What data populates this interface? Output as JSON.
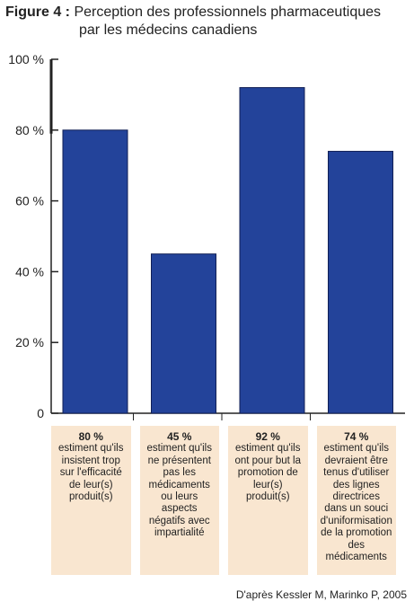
{
  "title": {
    "figure_label": "Figure 4 :",
    "line1": "Perception des professionnels pharmaceutiques",
    "line2": "par les médecins canadiens"
  },
  "chart_data": {
    "type": "bar",
    "y_ticks": [
      "0",
      "20 %",
      "40 %",
      "60 %",
      "80 %",
      "100 %"
    ],
    "ylim": [
      0,
      100
    ],
    "bar_color": "#23439a",
    "values": [
      80,
      45,
      92,
      74
    ],
    "captions": [
      {
        "pct": "80 %",
        "text": "estiment qu'ils insistent trop sur l'efficacité de leur(s) produit(s)"
      },
      {
        "pct": "45 %",
        "text": "estiment qu'ils ne présentent pas les médicaments ou leurs aspects négatifs avec impartialité"
      },
      {
        "pct": "92 %",
        "text": "estiment qu'ils ont pour but la promotion de leur(s) produit(s)"
      },
      {
        "pct": "74 %",
        "text": "estiment qu'ils devraient être tenus d'utiliser des lignes directrices dans un souci d'uniformisation de la promotion des médicaments"
      }
    ],
    "grid": false
  },
  "source": "D'après Kessler M, Marinko P, 2005"
}
